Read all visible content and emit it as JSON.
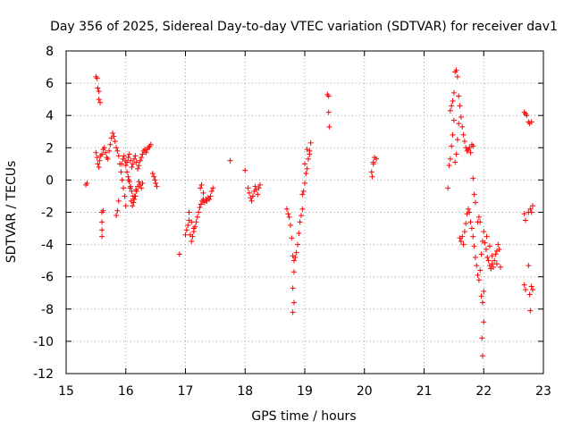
{
  "chart_data": {
    "type": "scatter",
    "title": "Day 356 of 2025, Sidereal Day-to-day VTEC variation (SDTVAR) for receiver dav1",
    "xlabel": "GPS time / hours",
    "ylabel": "SDTVAR / TECUs",
    "xlim": [
      15,
      23
    ],
    "ylim": [
      -12,
      8
    ],
    "xticks": [
      15,
      16,
      17,
      18,
      19,
      20,
      21,
      22,
      23
    ],
    "yticks": [
      -12,
      -10,
      -8,
      -6,
      -4,
      -2,
      0,
      2,
      4,
      6,
      8
    ],
    "grid": true,
    "marker": "+",
    "color": "#ff0000",
    "points": [
      [
        15.33,
        -0.3
      ],
      [
        15.35,
        -0.2
      ],
      [
        15.5,
        6.4
      ],
      [
        15.52,
        6.3
      ],
      [
        15.53,
        5.7
      ],
      [
        15.55,
        5.5
      ],
      [
        15.55,
        5.0
      ],
      [
        15.57,
        4.8
      ],
      [
        15.5,
        1.7
      ],
      [
        15.52,
        1.4
      ],
      [
        15.53,
        1.0
      ],
      [
        15.55,
        0.8
      ],
      [
        15.56,
        1.2
      ],
      [
        15.58,
        1.5
      ],
      [
        15.6,
        1.6
      ],
      [
        15.62,
        1.9
      ],
      [
        15.64,
        2.0
      ],
      [
        15.66,
        1.7
      ],
      [
        15.68,
        1.4
      ],
      [
        15.7,
        1.3
      ],
      [
        15.72,
        1.8
      ],
      [
        15.74,
        2.2
      ],
      [
        15.76,
        2.6
      ],
      [
        15.78,
        2.9
      ],
      [
        15.8,
        2.7
      ],
      [
        15.82,
        2.4
      ],
      [
        15.84,
        2.0
      ],
      [
        15.86,
        1.8
      ],
      [
        15.88,
        1.5
      ],
      [
        15.9,
        1.0
      ],
      [
        15.92,
        0.5
      ],
      [
        15.94,
        0.0
      ],
      [
        15.96,
        -0.5
      ],
      [
        15.98,
        -1.0
      ],
      [
        16.0,
        -1.6
      ],
      [
        15.84,
        -2.2
      ],
      [
        15.86,
        -1.9
      ],
      [
        15.88,
        -1.3
      ],
      [
        15.6,
        -2.0
      ],
      [
        15.62,
        -1.9
      ],
      [
        15.6,
        -2.6
      ],
      [
        15.6,
        -3.1
      ],
      [
        15.6,
        -3.5
      ],
      [
        15.93,
        1.0
      ],
      [
        15.95,
        1.3
      ],
      [
        15.97,
        1.5
      ],
      [
        15.99,
        1.2
      ],
      [
        16.0,
        0.9
      ],
      [
        16.02,
        1.1
      ],
      [
        16.04,
        1.4
      ],
      [
        16.06,
        1.6
      ],
      [
        16.08,
        1.2
      ],
      [
        16.1,
        0.8
      ],
      [
        16.12,
        1.0
      ],
      [
        16.14,
        1.3
      ],
      [
        16.16,
        1.5
      ],
      [
        16.18,
        1.1
      ],
      [
        16.2,
        0.7
      ],
      [
        16.22,
        0.9
      ],
      [
        16.24,
        1.2
      ],
      [
        16.26,
        1.4
      ],
      [
        16.28,
        1.6
      ],
      [
        16.3,
        1.8
      ],
      [
        16.32,
        1.9
      ],
      [
        16.34,
        1.7
      ],
      [
        16.36,
        1.9
      ],
      [
        16.38,
        2.0
      ],
      [
        16.4,
        2.1
      ],
      [
        16.42,
        2.2
      ],
      [
        16.02,
        0.5
      ],
      [
        16.04,
        0.2
      ],
      [
        16.06,
        -0.1
      ],
      [
        16.08,
        -0.4
      ],
      [
        16.1,
        -0.7
      ],
      [
        16.12,
        -1.0
      ],
      [
        16.14,
        -1.2
      ],
      [
        16.16,
        -1.0
      ],
      [
        16.18,
        -0.7
      ],
      [
        16.2,
        -0.4
      ],
      [
        16.22,
        -0.1
      ],
      [
        16.24,
        -0.3
      ],
      [
        16.26,
        -0.5
      ],
      [
        16.28,
        -0.2
      ],
      [
        16.05,
        0.0
      ],
      [
        16.07,
        -0.5
      ],
      [
        16.09,
        -1.3
      ],
      [
        16.11,
        -1.6
      ],
      [
        16.13,
        -1.4
      ],
      [
        16.15,
        -1.0
      ],
      [
        16.17,
        -0.6
      ],
      [
        16.45,
        0.4
      ],
      [
        16.47,
        0.2
      ],
      [
        16.49,
        0.0
      ],
      [
        16.5,
        -0.2
      ],
      [
        16.52,
        -0.4
      ],
      [
        16.9,
        -4.6
      ],
      [
        17.0,
        -3.4
      ],
      [
        17.02,
        -3.1
      ],
      [
        17.04,
        -2.8
      ],
      [
        17.06,
        -2.5
      ],
      [
        17.08,
        -3.4
      ],
      [
        17.1,
        -3.8
      ],
      [
        17.12,
        -3.5
      ],
      [
        17.14,
        -3.2
      ],
      [
        17.16,
        -2.9
      ],
      [
        17.18,
        -2.6
      ],
      [
        17.2,
        -2.3
      ],
      [
        17.22,
        -2.0
      ],
      [
        17.24,
        -1.7
      ],
      [
        17.26,
        -1.5
      ],
      [
        17.28,
        -1.3
      ],
      [
        17.3,
        -1.2
      ],
      [
        17.32,
        -1.4
      ],
      [
        17.34,
        -1.2
      ],
      [
        17.36,
        -1.3
      ],
      [
        17.38,
        -1.1
      ],
      [
        17.4,
        -1.2
      ],
      [
        17.42,
        -1.0
      ],
      [
        17.44,
        -0.7
      ],
      [
        17.46,
        -0.5
      ],
      [
        17.25,
        -0.5
      ],
      [
        17.27,
        -0.3
      ],
      [
        17.3,
        -0.8
      ],
      [
        17.06,
        -2.0
      ],
      [
        17.1,
        -2.6
      ],
      [
        17.14,
        -3.0
      ],
      [
        17.75,
        1.2
      ],
      [
        18.0,
        0.6
      ],
      [
        18.05,
        -0.5
      ],
      [
        18.07,
        -0.8
      ],
      [
        18.09,
        -1.1
      ],
      [
        18.11,
        -1.3
      ],
      [
        18.13,
        -1.0
      ],
      [
        18.15,
        -0.7
      ],
      [
        18.17,
        -0.4
      ],
      [
        18.19,
        -0.6
      ],
      [
        18.21,
        -0.9
      ],
      [
        18.23,
        -0.5
      ],
      [
        18.25,
        -0.3
      ],
      [
        18.7,
        -1.8
      ],
      [
        18.72,
        -2.1
      ],
      [
        18.74,
        -2.3
      ],
      [
        18.76,
        -2.8
      ],
      [
        18.78,
        -3.6
      ],
      [
        18.8,
        -4.7
      ],
      [
        18.82,
        -5.0
      ],
      [
        18.84,
        -4.8
      ],
      [
        18.86,
        -4.5
      ],
      [
        18.88,
        -4.0
      ],
      [
        18.9,
        -3.3
      ],
      [
        18.92,
        -2.6
      ],
      [
        18.94,
        -2.2
      ],
      [
        18.96,
        -1.8
      ],
      [
        18.98,
        -0.7
      ],
      [
        19.0,
        -0.2
      ],
      [
        19.02,
        0.4
      ],
      [
        19.04,
        0.7
      ],
      [
        19.06,
        1.3
      ],
      [
        19.08,
        1.8
      ],
      [
        19.1,
        2.3
      ],
      [
        18.82,
        -5.7
      ],
      [
        18.8,
        -6.7
      ],
      [
        18.82,
        -7.6
      ],
      [
        18.8,
        -8.2
      ],
      [
        18.96,
        -0.9
      ],
      [
        19.0,
        1.0
      ],
      [
        19.04,
        1.9
      ],
      [
        19.08,
        1.6
      ],
      [
        19.38,
        5.3
      ],
      [
        19.4,
        5.2
      ],
      [
        19.4,
        4.2
      ],
      [
        19.41,
        3.3
      ],
      [
        20.12,
        0.5
      ],
      [
        20.13,
        0.2
      ],
      [
        20.15,
        1.1
      ],
      [
        20.17,
        1.4
      ],
      [
        20.2,
        1.3
      ],
      [
        20.15,
        1.0
      ],
      [
        21.4,
        -0.5
      ],
      [
        21.42,
        0.9
      ],
      [
        21.44,
        1.3
      ],
      [
        21.46,
        2.1
      ],
      [
        21.48,
        2.8
      ],
      [
        21.5,
        3.7
      ],
      [
        21.44,
        4.3
      ],
      [
        21.46,
        4.6
      ],
      [
        21.48,
        4.9
      ],
      [
        21.5,
        5.4
      ],
      [
        21.52,
        6.7
      ],
      [
        21.54,
        6.8
      ],
      [
        21.56,
        6.4
      ],
      [
        21.58,
        5.2
      ],
      [
        21.6,
        4.6
      ],
      [
        21.62,
        3.9
      ],
      [
        21.64,
        3.3
      ],
      [
        21.66,
        2.8
      ],
      [
        21.68,
        2.4
      ],
      [
        21.7,
        2.0
      ],
      [
        21.72,
        1.8
      ],
      [
        21.74,
        1.9
      ],
      [
        21.76,
        2.0
      ],
      [
        21.78,
        1.7
      ],
      [
        21.8,
        2.2
      ],
      [
        21.82,
        2.1
      ],
      [
        21.52,
        1.1
      ],
      [
        21.54,
        1.6
      ],
      [
        21.56,
        2.5
      ],
      [
        21.58,
        3.5
      ],
      [
        21.6,
        -3.6
      ],
      [
        21.62,
        -3.8
      ],
      [
        21.64,
        -3.5
      ],
      [
        21.66,
        -4.0
      ],
      [
        21.68,
        -3.2
      ],
      [
        21.7,
        -2.7
      ],
      [
        21.72,
        -2.1
      ],
      [
        21.74,
        -1.8
      ],
      [
        21.76,
        -2.0
      ],
      [
        21.78,
        -2.6
      ],
      [
        21.8,
        -3.0
      ],
      [
        21.82,
        -3.5
      ],
      [
        21.84,
        -4.1
      ],
      [
        21.86,
        -4.8
      ],
      [
        21.88,
        -5.3
      ],
      [
        21.9,
        -5.9
      ],
      [
        21.92,
        -6.2
      ],
      [
        21.94,
        -5.6
      ],
      [
        21.96,
        -4.6
      ],
      [
        21.98,
        -3.8
      ],
      [
        22.0,
        -3.2
      ],
      [
        21.9,
        -2.6
      ],
      [
        21.92,
        -2.3
      ],
      [
        21.94,
        -2.6
      ],
      [
        21.82,
        0.1
      ],
      [
        21.84,
        -0.9
      ],
      [
        21.86,
        -1.4
      ],
      [
        21.96,
        -7.2
      ],
      [
        21.98,
        -7.6
      ],
      [
        22.0,
        -8.8
      ],
      [
        21.97,
        -9.8
      ],
      [
        21.98,
        -10.9
      ],
      [
        22.0,
        -6.9
      ],
      [
        22.02,
        -3.9
      ],
      [
        22.04,
        -4.3
      ],
      [
        22.06,
        -4.8
      ],
      [
        22.08,
        -5.0
      ],
      [
        22.1,
        -5.3
      ],
      [
        22.12,
        -5.5
      ],
      [
        22.14,
        -5.2
      ],
      [
        22.16,
        -5.4
      ],
      [
        22.18,
        -5.0
      ],
      [
        22.2,
        -4.6
      ],
      [
        22.22,
        -4.4
      ],
      [
        22.24,
        -4.0
      ],
      [
        22.26,
        -4.3
      ],
      [
        22.28,
        -5.4
      ],
      [
        22.05,
        -3.5
      ],
      [
        22.1,
        -4.1
      ],
      [
        22.14,
        -4.7
      ],
      [
        22.22,
        -5.2
      ],
      [
        22.68,
        4.2
      ],
      [
        22.7,
        4.1
      ],
      [
        22.72,
        4.0
      ],
      [
        22.75,
        3.6
      ],
      [
        22.77,
        3.5
      ],
      [
        22.8,
        3.6
      ],
      [
        22.68,
        -2.1
      ],
      [
        22.7,
        -2.5
      ],
      [
        22.75,
        -2.0
      ],
      [
        22.78,
        -1.8
      ],
      [
        22.8,
        -2.0
      ],
      [
        22.82,
        -1.6
      ],
      [
        22.68,
        -6.5
      ],
      [
        22.7,
        -6.8
      ],
      [
        22.75,
        -5.3
      ],
      [
        22.77,
        -7.1
      ],
      [
        22.78,
        -8.1
      ],
      [
        22.8,
        -6.6
      ],
      [
        22.82,
        -6.8
      ]
    ]
  }
}
